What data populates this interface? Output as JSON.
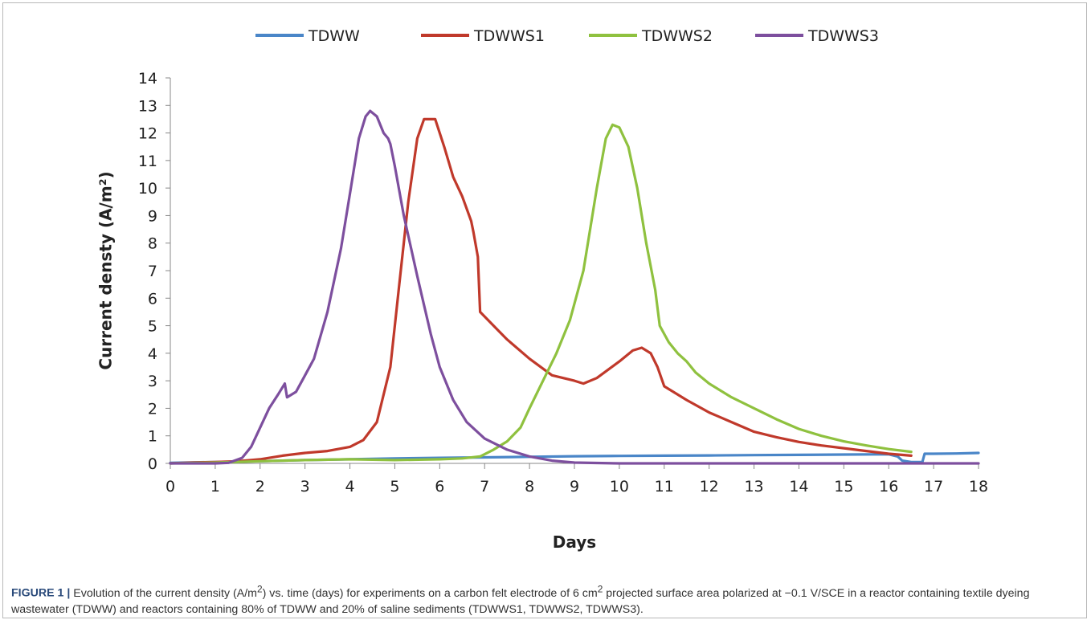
{
  "caption": {
    "label": "FIGURE 1 |",
    "text_html": "Evolution of the current density (A/m<sup>2</sup>) vs. time (days) for experiments on a carbon felt electrode of 6 cm<sup>2</sup> projected surface area polarized at −0.1 V/SCE in a reactor containing textile dyeing wastewater (TDWW) and reactors containing 80% of TDWW and 20% of saline sediments (TDWWS1, TDWWS2, TDWWS3)."
  },
  "chart_data": {
    "type": "line",
    "title": "",
    "xlabel": "Days",
    "ylabel": "Current densty (A/m²)",
    "xlim": [
      0,
      18
    ],
    "ylim": [
      0,
      14
    ],
    "xticks": [
      0,
      1,
      2,
      3,
      4,
      5,
      6,
      7,
      8,
      9,
      10,
      11,
      12,
      13,
      14,
      15,
      16,
      17,
      18
    ],
    "yticks": [
      0,
      1,
      2,
      3,
      4,
      5,
      6,
      7,
      8,
      9,
      10,
      11,
      12,
      13,
      14
    ],
    "grid": false,
    "legend_position": "top-center",
    "series": [
      {
        "name": "TDWW",
        "color": "#4a86c8",
        "points": [
          [
            0,
            0.02
          ],
          [
            1,
            0.05
          ],
          [
            2,
            0.08
          ],
          [
            3,
            0.12
          ],
          [
            4,
            0.15
          ],
          [
            5,
            0.18
          ],
          [
            6,
            0.2
          ],
          [
            7,
            0.22
          ],
          [
            8,
            0.24
          ],
          [
            9,
            0.26
          ],
          [
            10,
            0.27
          ],
          [
            11,
            0.28
          ],
          [
            12,
            0.29
          ],
          [
            13,
            0.3
          ],
          [
            14,
            0.31
          ],
          [
            15,
            0.32
          ],
          [
            16,
            0.33
          ],
          [
            16.2,
            0.25
          ],
          [
            16.3,
            0.1
          ],
          [
            16.5,
            0.05
          ],
          [
            16.75,
            0.05
          ],
          [
            16.8,
            0.35
          ],
          [
            17,
            0.35
          ],
          [
            17.5,
            0.36
          ],
          [
            18,
            0.38
          ]
        ]
      },
      {
        "name": "TDWWS1",
        "color": "#c0392b",
        "points": [
          [
            0,
            0.0
          ],
          [
            0.5,
            0.03
          ],
          [
            1,
            0.05
          ],
          [
            1.5,
            0.08
          ],
          [
            2,
            0.15
          ],
          [
            2.5,
            0.28
          ],
          [
            3,
            0.38
          ],
          [
            3.5,
            0.45
          ],
          [
            4,
            0.6
          ],
          [
            4.3,
            0.85
          ],
          [
            4.6,
            1.5
          ],
          [
            4.9,
            3.5
          ],
          [
            5.1,
            6.5
          ],
          [
            5.3,
            9.5
          ],
          [
            5.5,
            11.8
          ],
          [
            5.65,
            12.5
          ],
          [
            5.9,
            12.5
          ],
          [
            6.1,
            11.5
          ],
          [
            6.3,
            10.4
          ],
          [
            6.5,
            9.7
          ],
          [
            6.7,
            8.8
          ],
          [
            6.75,
            8.4
          ],
          [
            6.85,
            7.5
          ],
          [
            6.9,
            5.5
          ],
          [
            7.2,
            5.0
          ],
          [
            7.5,
            4.5
          ],
          [
            8,
            3.8
          ],
          [
            8.5,
            3.2
          ],
          [
            9,
            3.0
          ],
          [
            9.2,
            2.9
          ],
          [
            9.5,
            3.1
          ],
          [
            10,
            3.7
          ],
          [
            10.3,
            4.1
          ],
          [
            10.5,
            4.2
          ],
          [
            10.7,
            4.0
          ],
          [
            10.85,
            3.5
          ],
          [
            11,
            2.8
          ],
          [
            11.5,
            2.3
          ],
          [
            12,
            1.85
          ],
          [
            12.5,
            1.5
          ],
          [
            13,
            1.15
          ],
          [
            13.5,
            0.95
          ],
          [
            14,
            0.78
          ],
          [
            14.5,
            0.65
          ],
          [
            15,
            0.55
          ],
          [
            15.5,
            0.45
          ],
          [
            16,
            0.35
          ],
          [
            16.5,
            0.28
          ]
        ]
      },
      {
        "name": "TDWWS2",
        "color": "#8fc13f",
        "points": [
          [
            0,
            0.0
          ],
          [
            1,
            0.03
          ],
          [
            2,
            0.08
          ],
          [
            3,
            0.12
          ],
          [
            4,
            0.15
          ],
          [
            5,
            0.12
          ],
          [
            6,
            0.15
          ],
          [
            6.5,
            0.18
          ],
          [
            6.9,
            0.25
          ],
          [
            7.2,
            0.5
          ],
          [
            7.5,
            0.8
          ],
          [
            7.8,
            1.3
          ],
          [
            8,
            2.0
          ],
          [
            8.3,
            3.0
          ],
          [
            8.6,
            4.0
          ],
          [
            8.9,
            5.2
          ],
          [
            9.2,
            7.0
          ],
          [
            9.5,
            10.0
          ],
          [
            9.7,
            11.8
          ],
          [
            9.85,
            12.3
          ],
          [
            10,
            12.2
          ],
          [
            10.2,
            11.5
          ],
          [
            10.4,
            10.0
          ],
          [
            10.6,
            8.0
          ],
          [
            10.8,
            6.3
          ],
          [
            10.9,
            5.0
          ],
          [
            11.1,
            4.4
          ],
          [
            11.3,
            4.0
          ],
          [
            11.5,
            3.7
          ],
          [
            11.7,
            3.3
          ],
          [
            12,
            2.9
          ],
          [
            12.5,
            2.4
          ],
          [
            13,
            2.0
          ],
          [
            13.5,
            1.6
          ],
          [
            14,
            1.25
          ],
          [
            14.5,
            1.0
          ],
          [
            15,
            0.8
          ],
          [
            15.5,
            0.65
          ],
          [
            16,
            0.52
          ],
          [
            16.5,
            0.42
          ]
        ]
      },
      {
        "name": "TDWWS3",
        "color": "#7d4f9e",
        "points": [
          [
            0,
            0.0
          ],
          [
            0.5,
            0.0
          ],
          [
            1,
            0.0
          ],
          [
            1.3,
            0.02
          ],
          [
            1.6,
            0.2
          ],
          [
            1.8,
            0.6
          ],
          [
            2.0,
            1.3
          ],
          [
            2.2,
            2.0
          ],
          [
            2.4,
            2.5
          ],
          [
            2.55,
            2.9
          ],
          [
            2.6,
            2.4
          ],
          [
            2.8,
            2.6
          ],
          [
            3.0,
            3.2
          ],
          [
            3.2,
            3.8
          ],
          [
            3.5,
            5.5
          ],
          [
            3.8,
            7.8
          ],
          [
            4.0,
            9.8
          ],
          [
            4.2,
            11.8
          ],
          [
            4.35,
            12.6
          ],
          [
            4.45,
            12.8
          ],
          [
            4.6,
            12.6
          ],
          [
            4.75,
            12.0
          ],
          [
            4.85,
            11.8
          ],
          [
            4.9,
            11.6
          ],
          [
            5.0,
            10.8
          ],
          [
            5.2,
            9.0
          ],
          [
            5.5,
            6.8
          ],
          [
            5.8,
            4.7
          ],
          [
            6.0,
            3.5
          ],
          [
            6.3,
            2.3
          ],
          [
            6.6,
            1.5
          ],
          [
            7.0,
            0.9
          ],
          [
            7.5,
            0.5
          ],
          [
            8.0,
            0.25
          ],
          [
            8.5,
            0.1
          ],
          [
            9.0,
            0.03
          ],
          [
            10,
            0.0
          ],
          [
            12,
            0.0
          ],
          [
            14,
            0.0
          ],
          [
            16,
            0.0
          ],
          [
            18,
            0.0
          ]
        ]
      }
    ]
  }
}
